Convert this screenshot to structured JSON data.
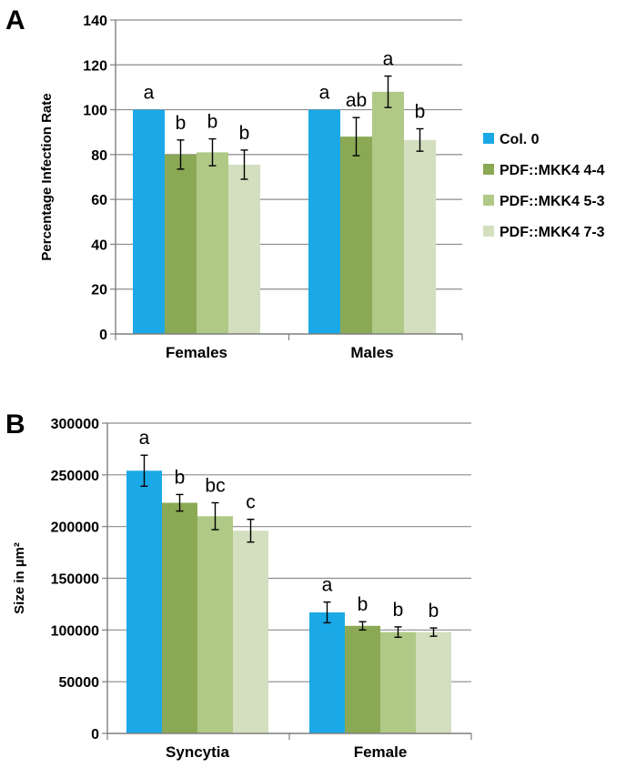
{
  "series_colors": [
    "#1aa9e6",
    "#8ba955",
    "#b0c987",
    "#d3dfbe"
  ],
  "legend": [
    "Col. 0",
    "PDF::MKK4 4-4",
    "PDF::MKK4 5-3",
    "PDF::MKK4 7-3"
  ],
  "chart_data": [
    {
      "type": "bar",
      "panel_label": "A",
      "ylabel": "Percentage Infection Rate",
      "xlabel": "",
      "ylim": [
        0,
        140
      ],
      "yticks": [
        0,
        20,
        40,
        60,
        80,
        100,
        120,
        140
      ],
      "yticks_labels": [
        "0",
        "20",
        "40",
        "60",
        "80",
        "100",
        "120",
        "140"
      ],
      "grid": true,
      "categories": [
        "Females",
        "Males"
      ],
      "series": [
        {
          "name": "Col. 0",
          "values": [
            100,
            100
          ],
          "errors": [
            0,
            0
          ],
          "letters": [
            "a",
            "a"
          ]
        },
        {
          "name": "PDF::MKK4 4-4",
          "values": [
            80,
            88
          ],
          "errors": [
            6.5,
            8.5
          ],
          "letters": [
            "b",
            "ab"
          ]
        },
        {
          "name": "PDF::MKK4 5-3",
          "values": [
            81,
            108
          ],
          "errors": [
            6,
            7
          ],
          "letters": [
            "b",
            "a"
          ]
        },
        {
          "name": "PDF::MKK4 7-3",
          "values": [
            75.5,
            86.5
          ],
          "errors": [
            6.5,
            5
          ],
          "letters": [
            "b",
            "b"
          ]
        }
      ]
    },
    {
      "type": "bar",
      "panel_label": "B",
      "ylabel": "Size in µm²",
      "xlabel": "",
      "ylim": [
        0,
        300000
      ],
      "yticks": [
        0,
        50000,
        100000,
        150000,
        200000,
        250000,
        300000
      ],
      "yticks_labels": [
        "0",
        "50000",
        "100000",
        "150000",
        "200000",
        "250000",
        "300000"
      ],
      "grid": true,
      "categories": [
        "Syncytia",
        "Female"
      ],
      "series": [
        {
          "name": "Col. 0",
          "values": [
            254000,
            117000
          ],
          "errors": [
            15000,
            10000
          ],
          "letters": [
            "a",
            "a"
          ]
        },
        {
          "name": "PDF::MKK4 4-4",
          "values": [
            223000,
            104000
          ],
          "errors": [
            8000,
            4000
          ],
          "letters": [
            "b",
            "b"
          ]
        },
        {
          "name": "PDF::MKK4 5-3",
          "values": [
            210000,
            98000
          ],
          "errors": [
            13000,
            5000
          ],
          "letters": [
            "bc",
            "b"
          ]
        },
        {
          "name": "PDF::MKK4 7-3",
          "values": [
            196000,
            98000
          ],
          "errors": [
            11000,
            4000
          ],
          "letters": [
            "c",
            "b"
          ]
        }
      ]
    }
  ]
}
